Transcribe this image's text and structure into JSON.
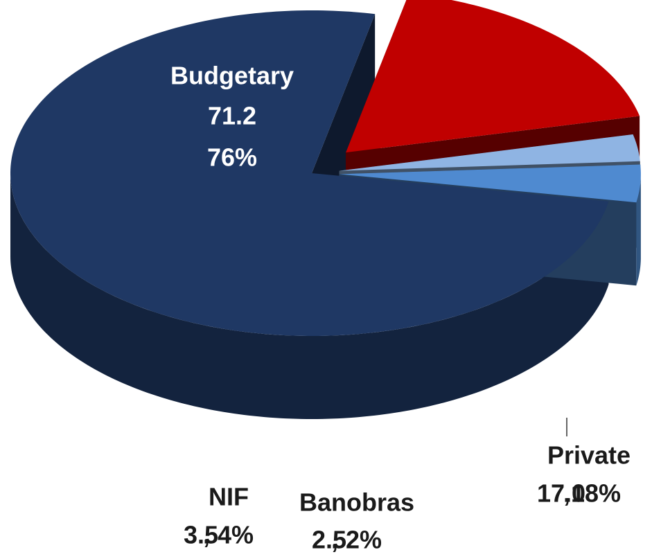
{
  "chart_data": {
    "type": "pie",
    "categories": [
      "Budgetary",
      "Private",
      "Banobras",
      "NIF"
    ],
    "values": [
      71.2,
      17.0,
      2.5,
      3.5
    ],
    "value_labels": [
      "71.2",
      "17.0",
      "2.5",
      "3.5"
    ],
    "percents": [
      76,
      18,
      2,
      4
    ],
    "percent_labels": [
      "76%",
      "18%",
      "2%",
      "4%"
    ],
    "label_separator": ",",
    "colors": [
      "#1f3864",
      "#c00000",
      "#8fb4e3",
      "#4f8ad0"
    ]
  }
}
